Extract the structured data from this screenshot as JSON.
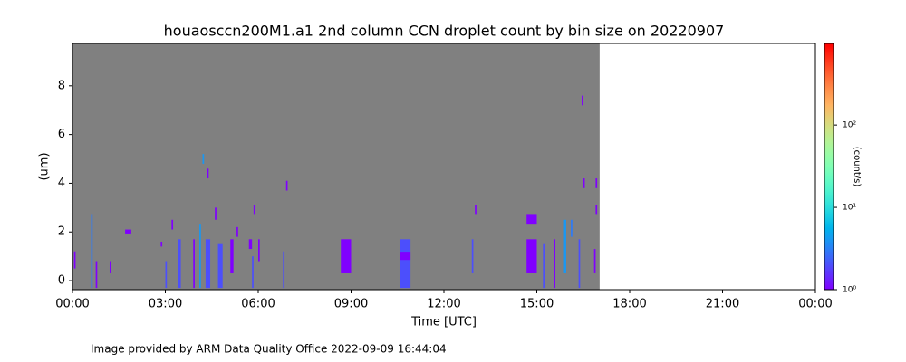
{
  "chart_data": {
    "type": "heatmap",
    "title": "houaosccn200M1.a1 2nd column CCN droplet count by bin size on 20220907",
    "xlabel": "Time [UTC]",
    "ylabel": "(um)",
    "colorbar_label": "(count/s)",
    "xlim": [
      0,
      24
    ],
    "xticks": [
      {
        "value": 0,
        "label": "00:00"
      },
      {
        "value": 3,
        "label": "03:00"
      },
      {
        "value": 6,
        "label": "06:00"
      },
      {
        "value": 9,
        "label": "09:00"
      },
      {
        "value": 12,
        "label": "12:00"
      },
      {
        "value": 15,
        "label": "15:00"
      },
      {
        "value": 18,
        "label": "18:00"
      },
      {
        "value": 21,
        "label": "21:00"
      },
      {
        "value": 24,
        "label": "00:00"
      }
    ],
    "ylim": [
      -0.37,
      9.74
    ],
    "yticks": [
      0,
      2,
      4,
      6,
      8
    ],
    "clim": [
      1,
      980
    ],
    "color_scale": "log",
    "colormap": "rainbow",
    "cticks": [
      {
        "value": 1,
        "label": "10⁰"
      },
      {
        "value": 10,
        "label": "10¹"
      },
      {
        "value": 100,
        "label": "10²"
      }
    ],
    "coverage": [
      0,
      17.03
    ],
    "background_color": "#808080",
    "x": [
      0.05,
      0.6,
      0.75,
      1.2,
      1.7,
      2.85,
      3.0,
      3.2,
      3.4,
      3.9,
      4.1,
      4.2,
      4.3,
      4.35,
      4.6,
      4.7,
      5.1,
      5.3,
      5.7,
      5.8,
      5.85,
      6.0,
      6.8,
      6.9,
      8.67,
      10.58,
      10.58,
      12.9,
      13.0,
      14.67,
      14.67,
      15.2,
      15.55,
      15.85,
      16.1,
      16.35,
      16.45,
      16.5,
      16.85,
      16.9,
      16.9
    ],
    "x_end": [
      0.1,
      0.65,
      0.8,
      1.25,
      1.9,
      2.9,
      3.05,
      3.25,
      3.5,
      3.95,
      4.15,
      4.25,
      4.45,
      4.4,
      4.65,
      4.85,
      5.2,
      5.35,
      5.8,
      5.85,
      5.9,
      6.05,
      6.85,
      6.95,
      9.0,
      10.92,
      10.92,
      12.95,
      13.05,
      15.0,
      15.0,
      15.25,
      15.6,
      15.95,
      16.15,
      16.4,
      16.5,
      16.55,
      16.9,
      16.95,
      16.95
    ],
    "y": [
      0.5,
      -0.3,
      -0.3,
      0.3,
      1.9,
      1.4,
      -0.3,
      2.1,
      -0.3,
      -0.3,
      -0.3,
      4.8,
      -0.3,
      4.2,
      2.5,
      -0.3,
      0.3,
      1.8,
      1.3,
      -0.3,
      2.7,
      0.8,
      -0.3,
      3.7,
      0.3,
      -0.3,
      0.85,
      0.3,
      2.7,
      0.3,
      2.3,
      -0.3,
      -0.3,
      0.3,
      1.8,
      -0.3,
      7.2,
      3.8,
      0.3,
      2.7,
      3.8
    ],
    "y_end": [
      1.2,
      2.7,
      0.8,
      0.8,
      2.1,
      1.6,
      0.8,
      2.5,
      1.7,
      1.7,
      2.3,
      5.2,
      1.7,
      4.6,
      3.0,
      1.5,
      1.7,
      2.2,
      1.7,
      1.0,
      3.1,
      1.7,
      1.2,
      4.1,
      1.7,
      1.7,
      1.15,
      1.7,
      3.1,
      1.7,
      2.7,
      1.5,
      1.7,
      2.5,
      2.5,
      1.7,
      7.6,
      4.2,
      1.3,
      3.1,
      4.2
    ],
    "values": [
      1,
      3,
      1,
      1,
      1,
      1,
      2,
      1,
      2,
      1,
      4,
      4,
      2,
      1,
      1,
      2,
      1,
      1,
      1,
      2,
      1,
      1,
      2,
      1,
      1,
      2,
      1,
      2,
      1,
      1,
      1,
      2,
      1,
      4,
      3,
      2,
      1,
      1,
      1,
      1,
      1
    ],
    "footnote": "Image provided by ARM Data Quality Office 2022-09-09 16:44:04",
    "footnote_color": "#a52a2a"
  }
}
